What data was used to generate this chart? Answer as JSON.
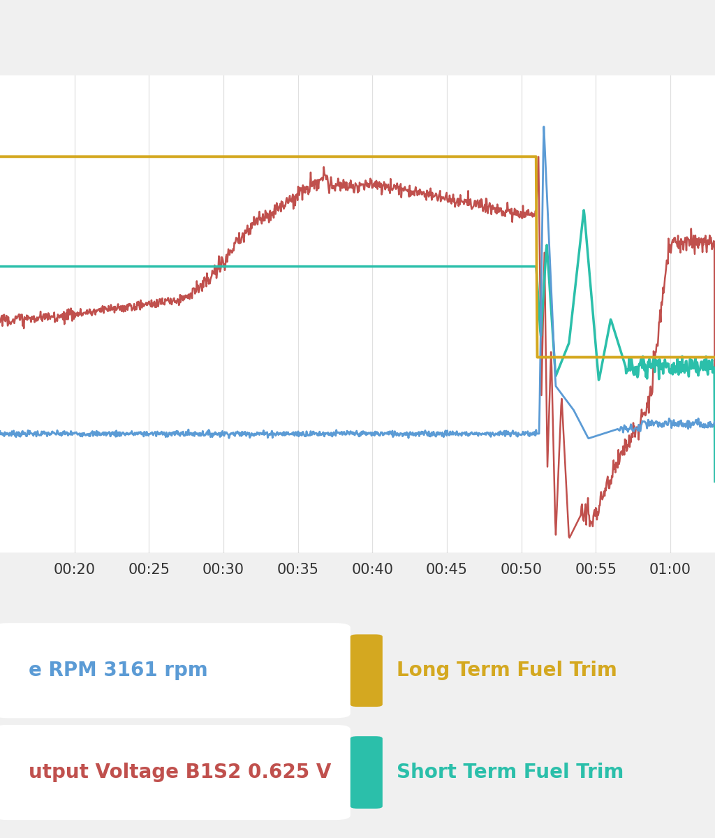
{
  "background_color": "#f0f0f0",
  "chart_bg": "#ffffff",
  "grid_color": "#e0e0e0",
  "top_bar_color": "#ebebeb",
  "bottom_area_color": "#f0f0f0",
  "x_ticks": [
    20,
    25,
    30,
    35,
    40,
    45,
    50,
    55,
    60
  ],
  "x_tick_labels": [
    "00:20",
    "00:25",
    "00:30",
    "00:35",
    "00:40",
    "00:45",
    "00:50",
    "00:55",
    "01:00"
  ],
  "colors": {
    "rpm": "#5b9bd5",
    "o2": "#c0504d",
    "ltft": "#d4a820",
    "stft": "#2bbfaa"
  },
  "legend": [
    {
      "label": "e RPM 3161 rpm",
      "color": "#5b9bd5"
    },
    {
      "label": "utput Voltage B1S2 0.625 V",
      "color": "#c0504d"
    },
    {
      "label": "Long Term Fuel Trim",
      "color": "#d4a820"
    },
    {
      "label": "Short Term Fuel Trim",
      "color": "#2bbfaa"
    }
  ]
}
